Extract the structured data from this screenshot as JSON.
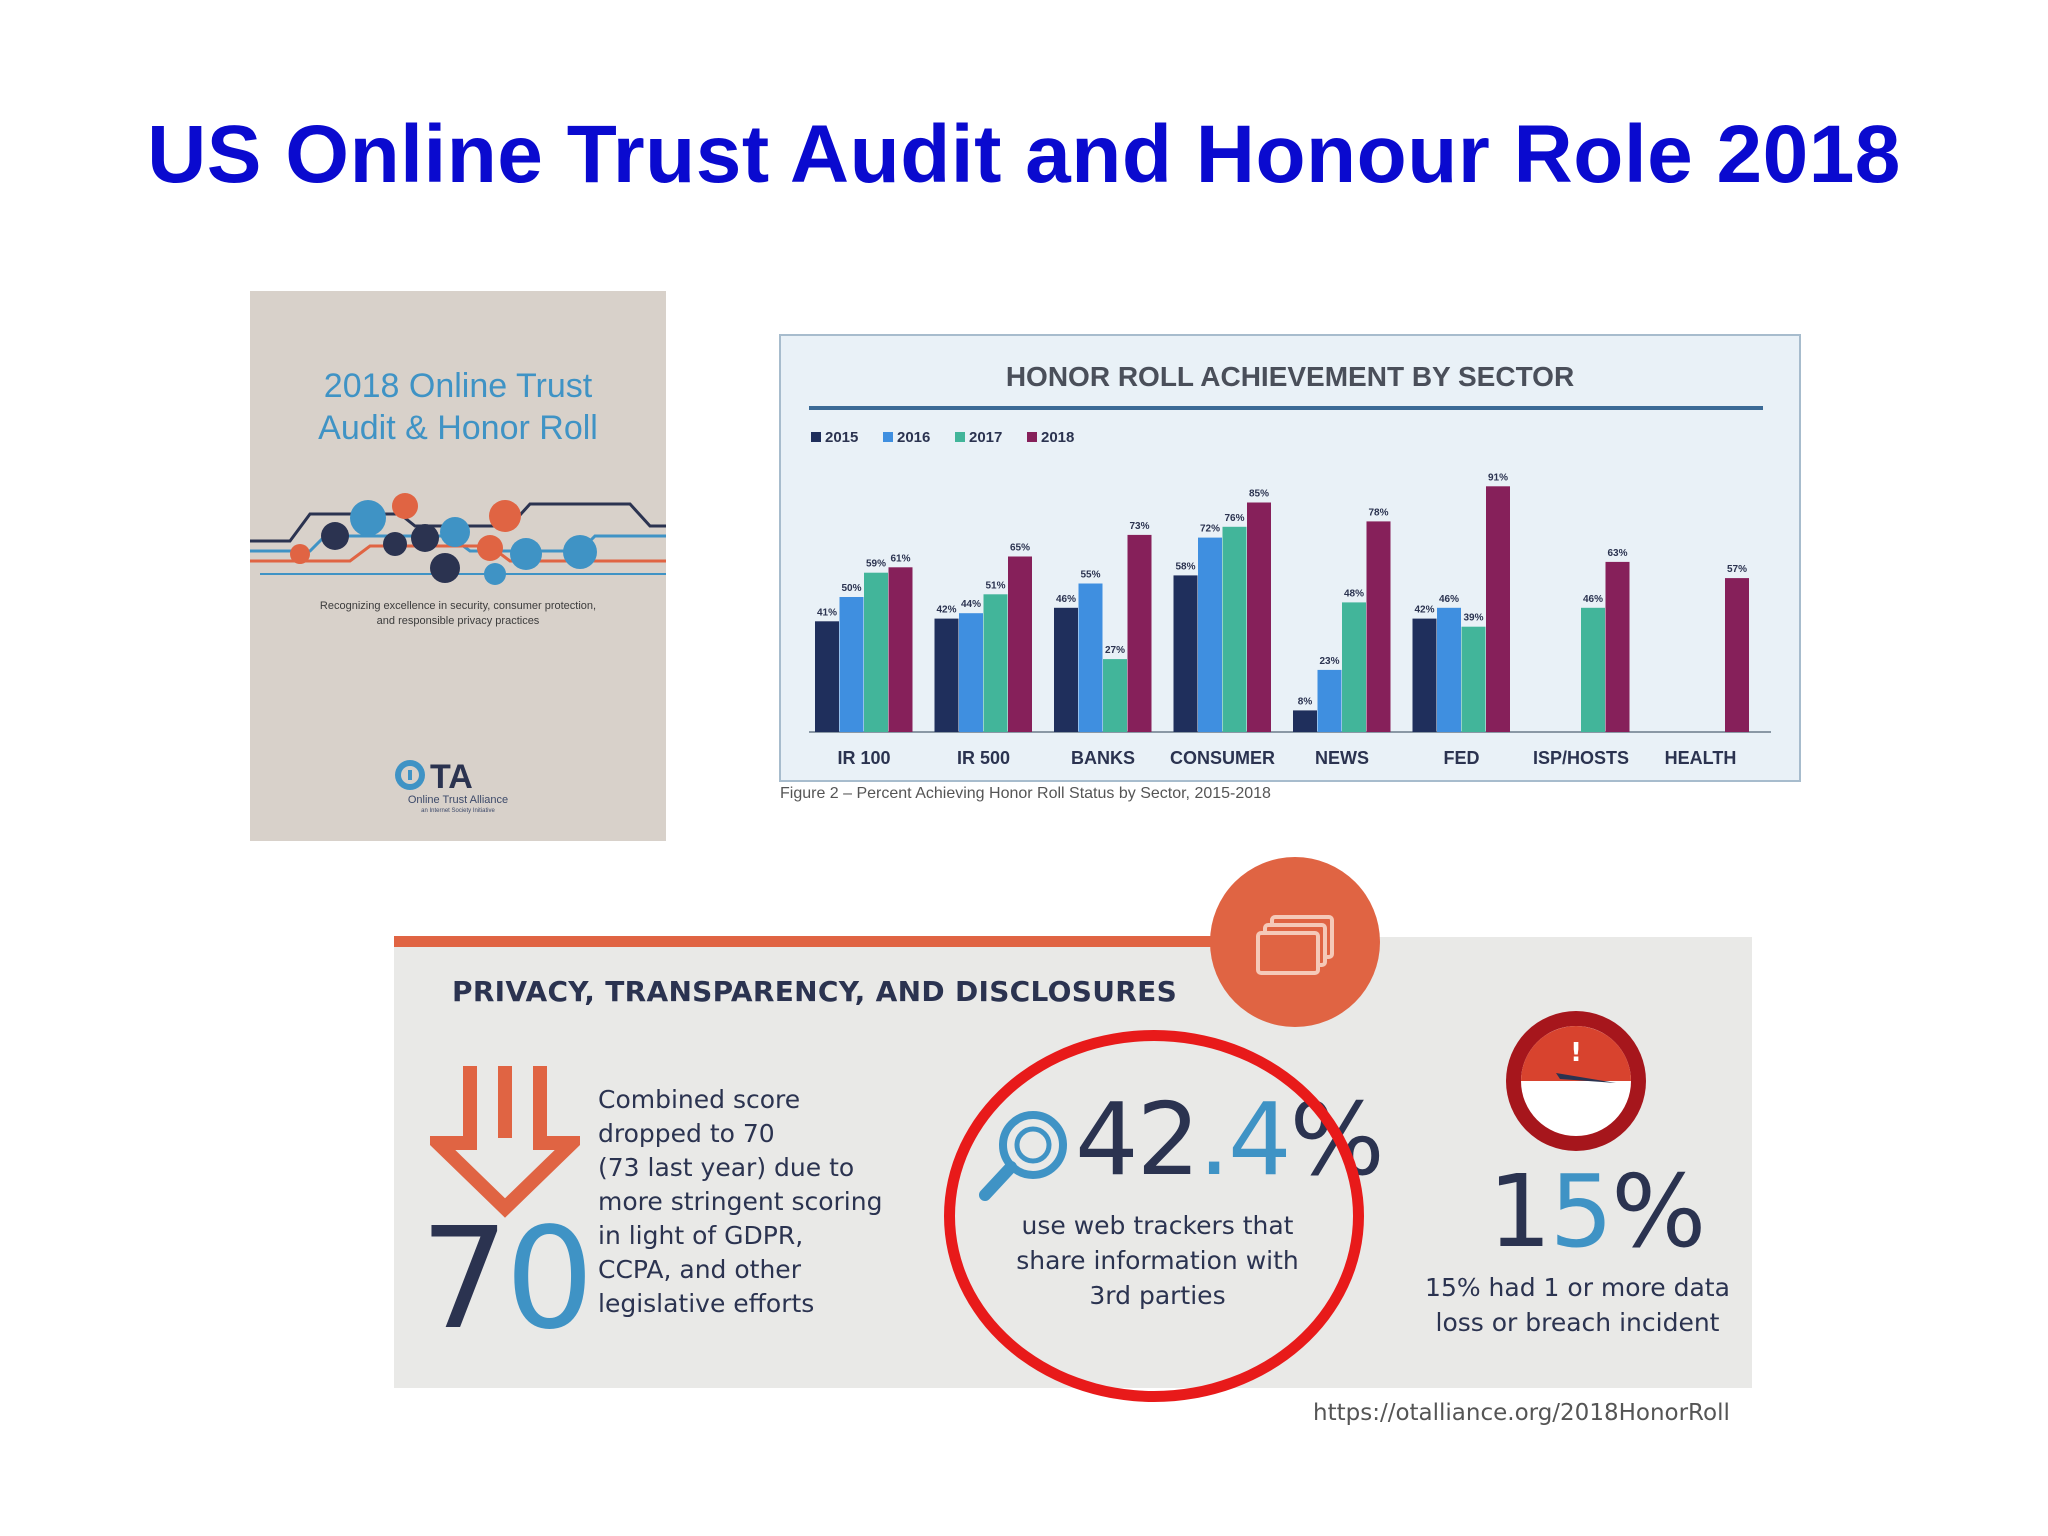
{
  "slide": {
    "title": "US Online Trust Audit and Honour Role 2018"
  },
  "cover": {
    "title_line1": "2018 Online Trust",
    "title_line2": "Audit & Honor Roll",
    "tagline_line1": "Recognizing excellence in security, consumer protection,",
    "tagline_line2": "and responsible privacy practices",
    "logo": "OTA",
    "org_name": "Online Trust Alliance",
    "org_sub": "an Internet Society Initiative",
    "colors": {
      "background": "#d8d1ca",
      "title": "#3f93c5"
    }
  },
  "chart_data": {
    "type": "bar",
    "title": "HONOR ROLL ACHIEVEMENT BY SECTOR",
    "caption": "Figure 2 – Percent Achieving Honor Roll Status by Sector, 2015-2018",
    "categories": [
      "IR 100",
      "IR 500",
      "BANKS",
      "CONSUMER",
      "NEWS",
      "FED",
      "ISP/HOSTS",
      "HEALTH"
    ],
    "series": [
      {
        "name": "2015",
        "color": "#1f2f5c",
        "values": [
          41,
          42,
          46,
          58,
          8,
          42,
          null,
          null
        ]
      },
      {
        "name": "2016",
        "color": "#3f8fe0",
        "values": [
          50,
          44,
          55,
          72,
          23,
          46,
          null,
          null
        ]
      },
      {
        "name": "2017",
        "color": "#42b59a",
        "values": [
          59,
          51,
          27,
          76,
          48,
          39,
          46,
          null
        ]
      },
      {
        "name": "2018",
        "color": "#86205a",
        "values": [
          61,
          65,
          73,
          85,
          78,
          91,
          63,
          57
        ]
      }
    ],
    "data_labels": [
      [
        "41%",
        "42%",
        "46%",
        "58%",
        "8%",
        "42%",
        "",
        ""
      ],
      [
        "50%",
        "44%",
        "55%",
        "72%",
        "23%",
        "46%",
        "",
        ""
      ],
      [
        "59%",
        "51%",
        "27%",
        "76%",
        "48%",
        "39%",
        "46%",
        ""
      ],
      [
        "61%",
        "65%",
        "73%",
        "85%",
        "78%",
        "91%",
        "63%",
        "57%"
      ]
    ],
    "ylim": [
      0,
      100
    ],
    "legend_position": "top-left",
    "grid": false
  },
  "infographic": {
    "heading": "PRIVACY, TRANSPARENCY, AND DISCLOSURES",
    "score": {
      "digit_1": "7",
      "digit_2": "0",
      "lines": [
        "Combined score",
        "dropped to 70",
        "(73 last year) due to",
        "more stringent scoring",
        "in light of GDPR,",
        "CCPA, and other",
        "legislative efforts"
      ]
    },
    "trackers": {
      "pct_int": "42",
      "pct_dec": ".4",
      "pct_sign": "%",
      "lines": [
        "use web trackers that",
        "share information with",
        "3rd parties"
      ]
    },
    "breach": {
      "pct_digit_1": "1",
      "pct_digit_2": "5",
      "pct_sign": "%",
      "lines": [
        "15% had 1 or more data",
        "loss or breach incident"
      ]
    },
    "source_url": "https://otalliance.org/2018HonorRoll",
    "icons": [
      "copy-windows-icon",
      "arrow-down-icon",
      "magnifier-icon",
      "alert-gauge-icon"
    ],
    "colors": {
      "accent": "#e06443",
      "text": "#2b3350",
      "highlight": "#3f93c5",
      "annotation": "#e81a1a"
    }
  }
}
